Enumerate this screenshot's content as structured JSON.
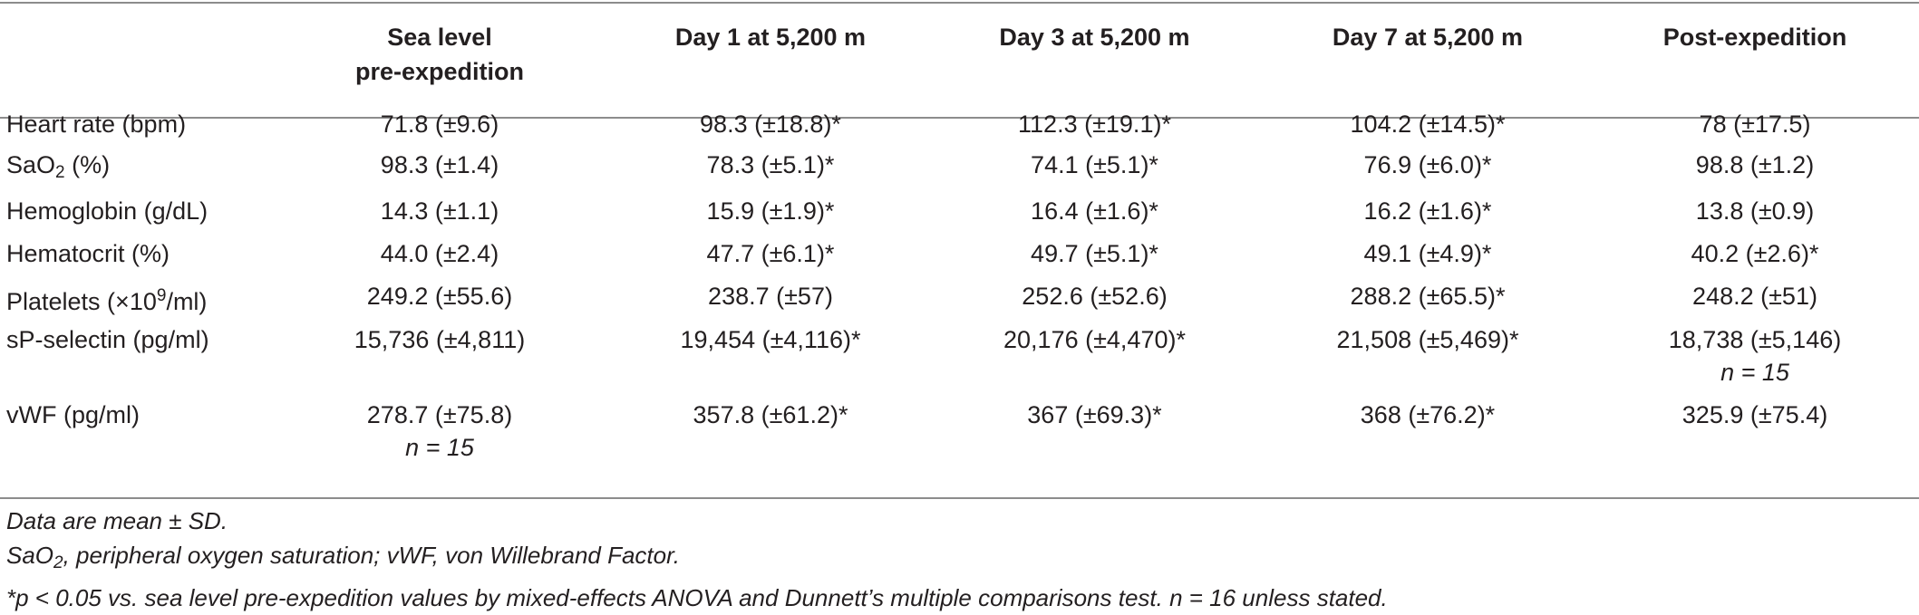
{
  "table": {
    "headers": [
      {
        "line1": "",
        "line2": ""
      },
      {
        "line1": "Sea level",
        "line2": "pre-expedition"
      },
      {
        "line1": "Day 1 at 5,200 m",
        "line2": ""
      },
      {
        "line1": "Day 3 at 5,200 m",
        "line2": ""
      },
      {
        "line1": "Day 7 at 5,200 m",
        "line2": ""
      },
      {
        "line1": "Post-expedition",
        "line2": ""
      }
    ],
    "rows": [
      {
        "label": "Heart rate (bpm)",
        "label_sub": "",
        "label_sup": "",
        "label_tail": "",
        "cells": [
          {
            "value": "71.8 (±9.6)",
            "n": ""
          },
          {
            "value": "98.3 (±18.8)*",
            "n": ""
          },
          {
            "value": "112.3 (±19.1)*",
            "n": ""
          },
          {
            "value": "104.2 (±14.5)*",
            "n": ""
          },
          {
            "value": "78 (±17.5)",
            "n": ""
          }
        ]
      },
      {
        "label": "SaO",
        "label_sub": "2",
        "label_sup": "",
        "label_tail": " (%)",
        "cells": [
          {
            "value": "98.3 (±1.4)",
            "n": ""
          },
          {
            "value": "78.3 (±5.1)*",
            "n": ""
          },
          {
            "value": "74.1 (±5.1)*",
            "n": ""
          },
          {
            "value": "76.9 (±6.0)*",
            "n": ""
          },
          {
            "value": "98.8 (±1.2)",
            "n": ""
          }
        ]
      },
      {
        "label": "Hemoglobin (g/dL)",
        "label_sub": "",
        "label_sup": "",
        "label_tail": "",
        "cells": [
          {
            "value": "14.3 (±1.1)",
            "n": ""
          },
          {
            "value": "15.9 (±1.9)*",
            "n": ""
          },
          {
            "value": "16.4 (±1.6)*",
            "n": ""
          },
          {
            "value": "16.2 (±1.6)*",
            "n": ""
          },
          {
            "value": "13.8 (±0.9)",
            "n": ""
          }
        ]
      },
      {
        "label": "Hematocrit (%)",
        "label_sub": "",
        "label_sup": "",
        "label_tail": "",
        "cells": [
          {
            "value": "44.0 (±2.4)",
            "n": ""
          },
          {
            "value": "47.7 (±6.1)*",
            "n": ""
          },
          {
            "value": "49.7 (±5.1)*",
            "n": ""
          },
          {
            "value": "49.1 (±4.9)*",
            "n": ""
          },
          {
            "value": "40.2 (±2.6)*",
            "n": ""
          }
        ]
      },
      {
        "label": "Platelets (×10",
        "label_sub": "",
        "label_sup": "9",
        "label_tail": "/ml)",
        "cells": [
          {
            "value": "249.2 (±55.6)",
            "n": ""
          },
          {
            "value": "238.7 (±57)",
            "n": ""
          },
          {
            "value": "252.6 (±52.6)",
            "n": ""
          },
          {
            "value": "288.2 (±65.5)*",
            "n": ""
          },
          {
            "value": "248.2 (±51)",
            "n": ""
          }
        ]
      },
      {
        "label": "sP-selectin (pg/ml)",
        "label_sub": "",
        "label_sup": "",
        "label_tail": "",
        "cells": [
          {
            "value": "15,736 (±4,811)",
            "n": ""
          },
          {
            "value": "19,454 (±4,116)*",
            "n": ""
          },
          {
            "value": "20,176 (±4,470)*",
            "n": ""
          },
          {
            "value": "21,508 (±5,469)*",
            "n": ""
          },
          {
            "value": "18,738 (±5,146)",
            "n": "n = 15"
          }
        ]
      },
      {
        "label": "vWF (pg/ml)",
        "label_sub": "",
        "label_sup": "",
        "label_tail": "",
        "cells": [
          {
            "value": "278.7 (±75.8)",
            "n": "n = 15"
          },
          {
            "value": "357.8 (±61.2)*",
            "n": ""
          },
          {
            "value": "367 (±69.3)*",
            "n": ""
          },
          {
            "value": "368 (±76.2)*",
            "n": ""
          },
          {
            "value": "325.9 (±75.4)",
            "n": ""
          }
        ]
      }
    ]
  },
  "notes": {
    "line1": "Data are mean ± SD.",
    "line2_a": "SaO",
    "line2_sub": "2",
    "line2_b": ", peripheral oxygen saturation; vWF, von Willebrand Factor.",
    "line3": "*p < 0.05 vs. sea level pre-expedition values by mixed-effects ANOVA and Dunnett’s multiple comparisons test. n = 16 unless stated."
  }
}
